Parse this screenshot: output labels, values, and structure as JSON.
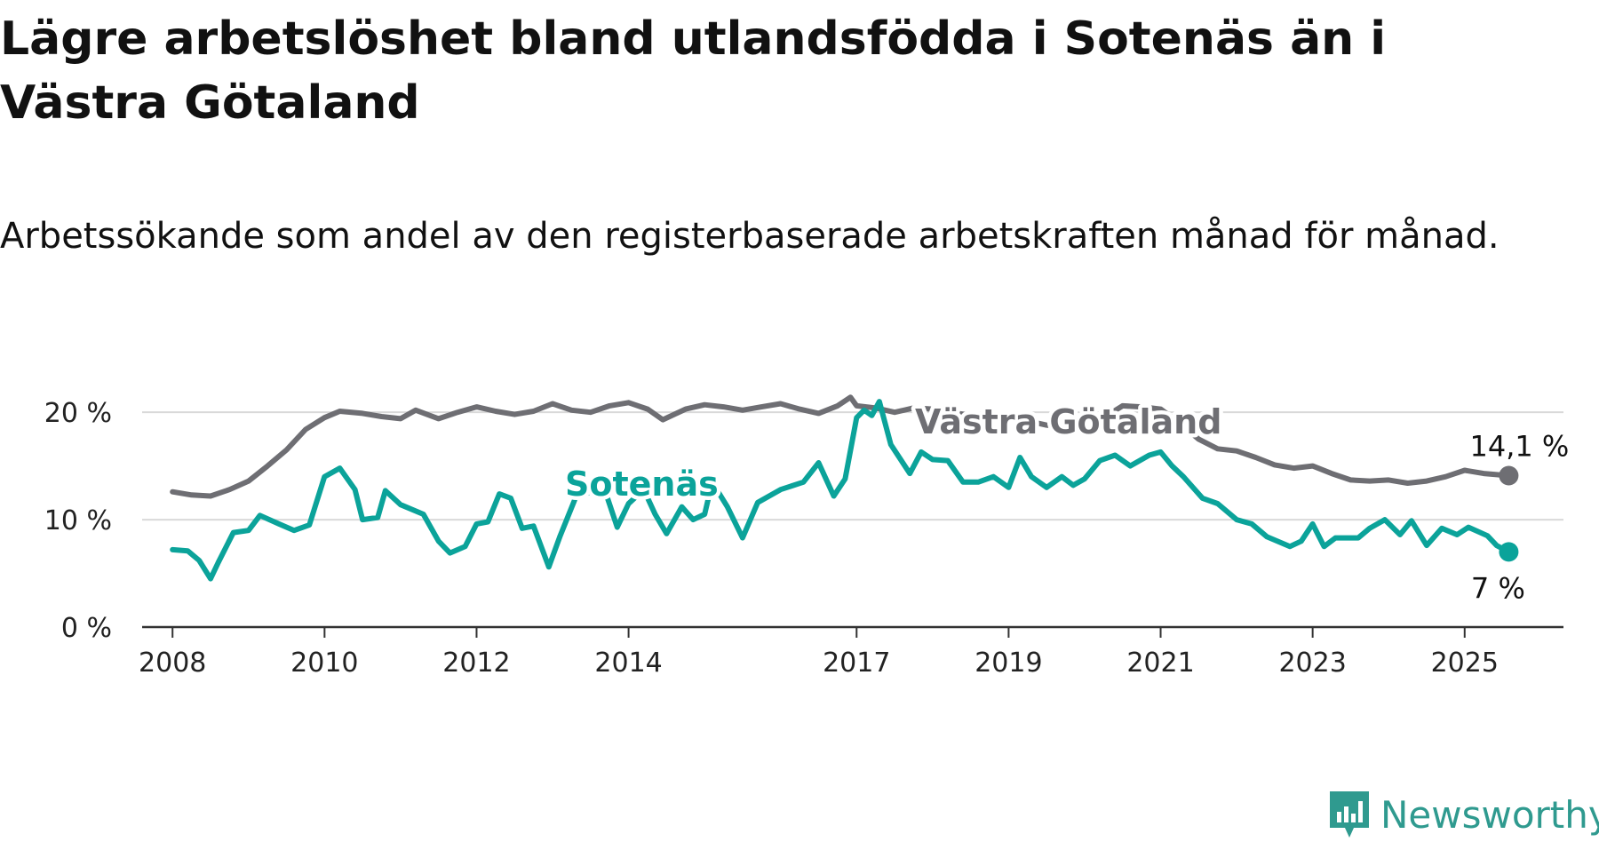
{
  "title": "Lägre arbetslöshet bland utlandsfödda i Sotenäs än i Västra Götaland",
  "subtitle": "Arbetssökande som andel av den registerbaserade arbetskraften månad för månad.",
  "brand": {
    "name": "Newsworthy",
    "icon": "newsworthy-logo-icon",
    "color": "#2f9a8f"
  },
  "chart_data": {
    "type": "line",
    "title": "Lägre arbetslöshet bland utlandsfödda i Sotenäs än i Västra Götaland",
    "subtitle": "Arbetssökande som andel av den registerbaserade arbetskraften månad för månad.",
    "xlabel": "",
    "ylabel": "",
    "x_ticks": [
      "2008",
      "2010",
      "2012",
      "2014",
      "2017",
      "2019",
      "2021",
      "2023",
      "2025"
    ],
    "y_ticks": [
      "0 %",
      "10 %",
      "20 %"
    ],
    "ylim": [
      0,
      22
    ],
    "xlim": [
      2007.6,
      2026.3
    ],
    "grid": true,
    "legend": "inline labels",
    "series": [
      {
        "name": "Västra Götaland",
        "color": "#6e6e73",
        "end_label": "14,1 %",
        "points": [
          [
            2008.0,
            12.6
          ],
          [
            2008.25,
            12.3
          ],
          [
            2008.5,
            12.2
          ],
          [
            2008.75,
            12.8
          ],
          [
            2009.0,
            13.6
          ],
          [
            2009.25,
            15.0
          ],
          [
            2009.5,
            16.5
          ],
          [
            2009.75,
            18.4
          ],
          [
            2010.0,
            19.5
          ],
          [
            2010.2,
            20.1
          ],
          [
            2010.5,
            19.9
          ],
          [
            2010.75,
            19.6
          ],
          [
            2011.0,
            19.4
          ],
          [
            2011.2,
            20.2
          ],
          [
            2011.5,
            19.4
          ],
          [
            2011.75,
            20.0
          ],
          [
            2012.0,
            20.5
          ],
          [
            2012.25,
            20.1
          ],
          [
            2012.5,
            19.8
          ],
          [
            2012.75,
            20.1
          ],
          [
            2013.0,
            20.8
          ],
          [
            2013.25,
            20.2
          ],
          [
            2013.5,
            20.0
          ],
          [
            2013.75,
            20.6
          ],
          [
            2014.0,
            20.9
          ],
          [
            2014.25,
            20.3
          ],
          [
            2014.45,
            19.3
          ],
          [
            2014.75,
            20.3
          ],
          [
            2015.0,
            20.7
          ],
          [
            2015.25,
            20.5
          ],
          [
            2015.5,
            20.2
          ],
          [
            2015.75,
            20.5
          ],
          [
            2016.0,
            20.8
          ],
          [
            2016.25,
            20.3
          ],
          [
            2016.5,
            19.9
          ],
          [
            2016.75,
            20.6
          ],
          [
            2016.92,
            21.4
          ],
          [
            2017.0,
            20.6
          ],
          [
            2017.25,
            20.4
          ],
          [
            2017.5,
            20.0
          ],
          [
            2017.75,
            20.4
          ],
          [
            2018.0,
            20.3
          ],
          [
            2018.5,
            19.7
          ],
          [
            2019.0,
            19.6
          ],
          [
            2019.5,
            18.8
          ],
          [
            2020.0,
            18.4
          ],
          [
            2020.5,
            20.6
          ],
          [
            2020.75,
            20.5
          ],
          [
            2021.0,
            20.3
          ],
          [
            2021.25,
            19.0
          ],
          [
            2021.5,
            17.5
          ],
          [
            2021.75,
            16.6
          ],
          [
            2022.0,
            16.4
          ],
          [
            2022.25,
            15.8
          ],
          [
            2022.5,
            15.1
          ],
          [
            2022.75,
            14.8
          ],
          [
            2023.0,
            15.0
          ],
          [
            2023.25,
            14.3
          ],
          [
            2023.5,
            13.7
          ],
          [
            2023.75,
            13.6
          ],
          [
            2024.0,
            13.7
          ],
          [
            2024.25,
            13.4
          ],
          [
            2024.5,
            13.6
          ],
          [
            2024.75,
            14.0
          ],
          [
            2025.0,
            14.6
          ],
          [
            2025.25,
            14.3
          ],
          [
            2025.58,
            14.1
          ]
        ]
      },
      {
        "name": "Sotenäs",
        "color": "#0ba39a",
        "end_label": "7 %",
        "points": [
          [
            2008.0,
            7.2
          ],
          [
            2008.2,
            7.1
          ],
          [
            2008.35,
            6.2
          ],
          [
            2008.5,
            4.5
          ],
          [
            2008.6,
            6.0
          ],
          [
            2008.8,
            8.8
          ],
          [
            2009.0,
            9.0
          ],
          [
            2009.15,
            10.4
          ],
          [
            2009.4,
            9.6
          ],
          [
            2009.6,
            9.0
          ],
          [
            2009.8,
            9.5
          ],
          [
            2010.0,
            14.0
          ],
          [
            2010.2,
            14.8
          ],
          [
            2010.4,
            12.8
          ],
          [
            2010.5,
            10.0
          ],
          [
            2010.7,
            10.2
          ],
          [
            2010.8,
            12.7
          ],
          [
            2011.0,
            11.4
          ],
          [
            2011.3,
            10.5
          ],
          [
            2011.5,
            8.0
          ],
          [
            2011.65,
            6.9
          ],
          [
            2011.85,
            7.5
          ],
          [
            2012.0,
            9.6
          ],
          [
            2012.15,
            9.8
          ],
          [
            2012.3,
            12.4
          ],
          [
            2012.45,
            12.0
          ],
          [
            2012.6,
            9.2
          ],
          [
            2012.75,
            9.4
          ],
          [
            2012.95,
            5.6
          ],
          [
            2013.1,
            8.5
          ],
          [
            2013.3,
            12.0
          ],
          [
            2013.5,
            12.6
          ],
          [
            2013.7,
            12.5
          ],
          [
            2013.85,
            9.3
          ],
          [
            2014.0,
            11.5
          ],
          [
            2014.2,
            12.8
          ],
          [
            2014.35,
            10.5
          ],
          [
            2014.5,
            8.7
          ],
          [
            2014.7,
            11.2
          ],
          [
            2014.85,
            10.0
          ],
          [
            2015.0,
            10.5
          ],
          [
            2015.1,
            13.5
          ],
          [
            2015.3,
            11.2
          ],
          [
            2015.5,
            8.3
          ],
          [
            2015.7,
            11.6
          ],
          [
            2016.0,
            12.8
          ],
          [
            2016.3,
            13.5
          ],
          [
            2016.5,
            15.3
          ],
          [
            2016.7,
            12.2
          ],
          [
            2016.85,
            13.8
          ],
          [
            2017.0,
            19.5
          ],
          [
            2017.1,
            20.2
          ],
          [
            2017.2,
            19.7
          ],
          [
            2017.3,
            21.0
          ],
          [
            2017.45,
            17.0
          ],
          [
            2017.7,
            14.3
          ],
          [
            2017.85,
            16.3
          ],
          [
            2018.0,
            15.6
          ],
          [
            2018.2,
            15.5
          ],
          [
            2018.4,
            13.5
          ],
          [
            2018.6,
            13.5
          ],
          [
            2018.8,
            14.0
          ],
          [
            2019.0,
            13.0
          ],
          [
            2019.15,
            15.8
          ],
          [
            2019.3,
            14.0
          ],
          [
            2019.5,
            13.0
          ],
          [
            2019.7,
            14.0
          ],
          [
            2019.85,
            13.2
          ],
          [
            2020.0,
            13.8
          ],
          [
            2020.2,
            15.5
          ],
          [
            2020.4,
            16.0
          ],
          [
            2020.6,
            15.0
          ],
          [
            2020.85,
            16.0
          ],
          [
            2021.0,
            16.3
          ],
          [
            2021.15,
            15.0
          ],
          [
            2021.3,
            14.0
          ],
          [
            2021.55,
            12.0
          ],
          [
            2021.75,
            11.5
          ],
          [
            2022.0,
            10.0
          ],
          [
            2022.2,
            9.6
          ],
          [
            2022.4,
            8.4
          ],
          [
            2022.7,
            7.5
          ],
          [
            2022.85,
            8.0
          ],
          [
            2023.0,
            9.6
          ],
          [
            2023.15,
            7.5
          ],
          [
            2023.3,
            8.3
          ],
          [
            2023.6,
            8.3
          ],
          [
            2023.75,
            9.2
          ],
          [
            2023.95,
            10.0
          ],
          [
            2024.15,
            8.6
          ],
          [
            2024.3,
            9.9
          ],
          [
            2024.5,
            7.6
          ],
          [
            2024.7,
            9.2
          ],
          [
            2024.9,
            8.6
          ],
          [
            2025.05,
            9.3
          ],
          [
            2025.3,
            8.5
          ],
          [
            2025.42,
            7.6
          ],
          [
            2025.58,
            7.0
          ]
        ]
      }
    ]
  }
}
